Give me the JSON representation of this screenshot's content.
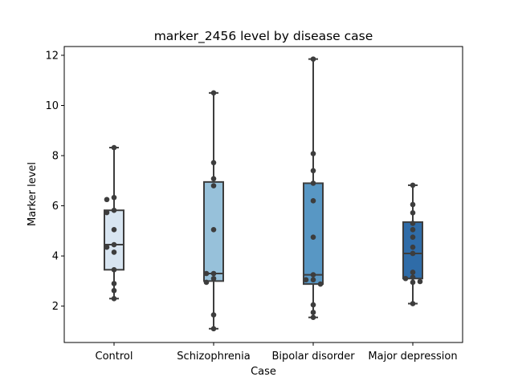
{
  "chart_data": {
    "type": "box",
    "title": "marker_2456 level by disease case",
    "xlabel": "Case",
    "ylabel": "Marker level",
    "ylim": [
      0.55,
      12.35
    ],
    "yticks": [
      2,
      4,
      6,
      8,
      10,
      12
    ],
    "ytick_labels": [
      "2",
      "4",
      "6",
      "8",
      "10",
      "12"
    ],
    "grid": false,
    "legend": "none",
    "categories": [
      "Control",
      "Schizophrenia",
      "Bipolar disorder",
      "Major depression"
    ],
    "boxes": [
      {
        "category": "Control",
        "q1": 3.45,
        "median": 4.45,
        "q3": 5.82,
        "whisker_low": 2.3,
        "whisker_high": 8.32,
        "color": "#d8e5f1"
      },
      {
        "category": "Schizophrenia",
        "q1": 3.0,
        "median": 3.3,
        "q3": 6.95,
        "whisker_low": 1.1,
        "whisker_high": 10.5,
        "color": "#97c1da"
      },
      {
        "category": "Bipolar disorder",
        "q1": 2.88,
        "median": 3.25,
        "q3": 6.9,
        "whisker_low": 1.55,
        "whisker_high": 11.85,
        "color": "#5897c4"
      },
      {
        "category": "Major depression",
        "q1": 3.1,
        "median": 4.1,
        "q3": 5.35,
        "whisker_low": 2.1,
        "whisker_high": 6.82,
        "color": "#2f6ca8"
      }
    ],
    "points": [
      {
        "category": "Control",
        "values": [
          8.32,
          6.33,
          6.25,
          5.82,
          5.73,
          5.05,
          4.45,
          4.35,
          4.15,
          3.45,
          2.9,
          2.62,
          2.3
        ]
      },
      {
        "category": "Schizophrenia",
        "values": [
          10.5,
          7.72,
          7.08,
          6.8,
          5.05,
          3.3,
          3.3,
          3.1,
          2.95,
          1.65,
          1.1
        ]
      },
      {
        "category": "Bipolar disorder",
        "values": [
          11.85,
          8.08,
          7.4,
          6.9,
          6.2,
          4.75,
          3.25,
          3.05,
          3.05,
          2.88,
          2.05,
          1.75,
          1.55
        ]
      },
      {
        "category": "Major depression",
        "values": [
          6.82,
          6.05,
          5.72,
          5.3,
          5.05,
          4.75,
          4.35,
          4.1,
          3.35,
          3.15,
          3.1,
          2.98,
          2.95,
          2.1
        ]
      }
    ]
  }
}
